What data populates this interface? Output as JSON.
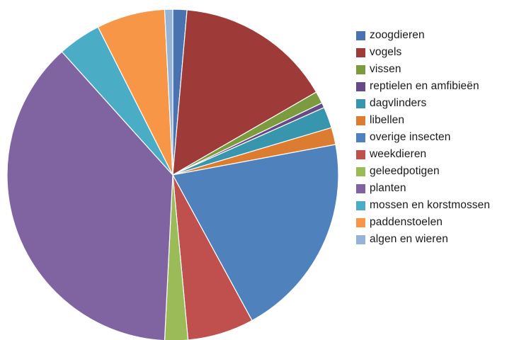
{
  "chart_data": {
    "type": "pie",
    "title": "",
    "start_angle_deg": 0,
    "direction": "clockwise",
    "legend_position": "right",
    "categories": [
      "zoogdieren",
      "vogels",
      "vissen",
      "reptielen en amfibieën",
      "dagvlinders",
      "libellen",
      "overige insecten",
      "weekdieren",
      "geleedpotigen",
      "planten",
      "mossen en korstmossen",
      "paddenstoelen",
      "algen en wieren"
    ],
    "values": [
      1.4,
      15.6,
      1.2,
      0.5,
      2.1,
      1.7,
      20.4,
      6.6,
      2.3,
      38.3,
      4.3,
      6.8,
      0.8
    ],
    "unit": "%",
    "colors": [
      "#4a72b0",
      "#9e3b38",
      "#7c9b3f",
      "#654a87",
      "#3795ad",
      "#dc7c30",
      "#4f81bd",
      "#c0504d",
      "#9bbb59",
      "#8064a2",
      "#4bacc6",
      "#f79646",
      "#95b3d7"
    ]
  }
}
